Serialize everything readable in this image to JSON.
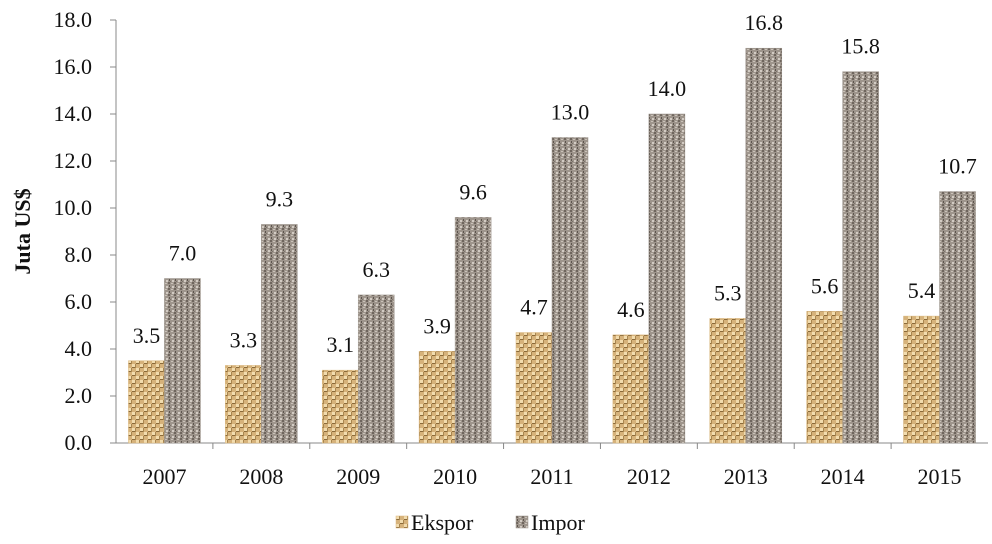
{
  "chart_data": {
    "type": "bar",
    "categories": [
      "2007",
      "2008",
      "2009",
      "2010",
      "2011",
      "2012",
      "2013",
      "2014",
      "2015"
    ],
    "series": [
      {
        "name": "Ekspor",
        "values": [
          3.5,
          3.3,
          3.1,
          3.9,
          4.7,
          4.6,
          5.3,
          5.6,
          5.4
        ],
        "labels": [
          "3.5",
          "3.3",
          "3.1",
          "3.9",
          "4.7",
          "4.6",
          "5.3",
          "5.6",
          "5.4"
        ],
        "color": "#d9b57a"
      },
      {
        "name": "Impor",
        "values": [
          7.0,
          9.3,
          6.3,
          9.6,
          13.0,
          14.0,
          16.8,
          15.8,
          10.7
        ],
        "labels": [
          "7.0",
          "9.3",
          "6.3",
          "9.6",
          "13.0",
          "14.0",
          "16.8",
          "15.8",
          "10.7"
        ],
        "color": "#9a928a"
      }
    ],
    "ylabel": "Juta US$",
    "ylim": [
      0,
      18
    ],
    "yticks": [
      0,
      2,
      4,
      6,
      8,
      10,
      12,
      14,
      16,
      18
    ],
    "ytick_labels": [
      "0.0",
      "2.0",
      "4.0",
      "6.0",
      "8.0",
      "10.0",
      "12.0",
      "14.0",
      "16.0",
      "18.0"
    ],
    "grid": false,
    "legend": "bottom"
  }
}
